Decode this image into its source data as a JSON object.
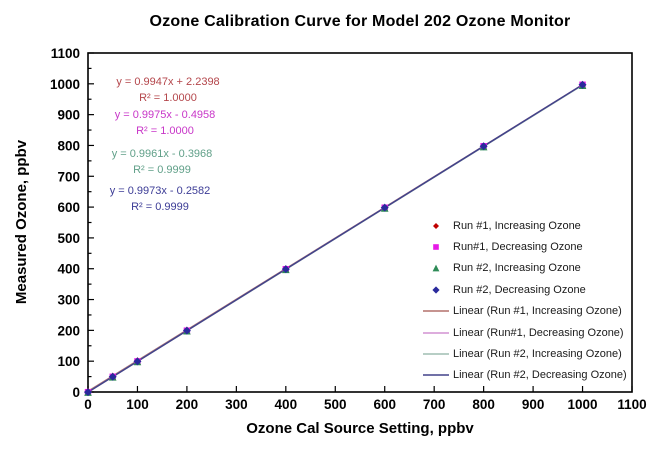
{
  "chart_data": {
    "type": "scatter",
    "title": "Ozone Calibration Curve for Model 202 Ozone Monitor",
    "xlabel": "Ozone Cal Source Setting, ppbv",
    "ylabel": "Measured Ozone, ppbv",
    "xlim": [
      0,
      1100
    ],
    "ylim": [
      0,
      1100
    ],
    "x_tick_step": 100,
    "y_tick_step": 100,
    "y_minor_tick_step": 50,
    "grid": false,
    "legend_position": "inside right",
    "x": [
      0,
      50,
      100,
      200,
      400,
      600,
      800,
      1000
    ],
    "series": [
      {
        "name": "Run #1, Increasing Ozone",
        "marker": "diamond",
        "marker_color": "#C00000",
        "values": [
          2.2,
          52.0,
          101.7,
          201.2,
          400.1,
          599.1,
          798.0,
          996.9
        ],
        "fit": {
          "slope": 0.9947,
          "intercept": 2.2398,
          "equation": "y = 0.9947x + 2.2398",
          "r2": "R² = 1.0000",
          "color": "#B4464B"
        },
        "trend_label": "Linear (Run #1, Increasing Ozone)",
        "trend_color": "#B4716C"
      },
      {
        "name": "Run#1, Decreasing Ozone",
        "marker": "square",
        "marker_color": "#E619E6",
        "values": [
          -0.5,
          49.4,
          99.3,
          199.0,
          398.5,
          598.0,
          797.5,
          997.0
        ],
        "fit": {
          "slope": 0.9975,
          "intercept": -0.4958,
          "equation": "y = 0.9975x - 0.4958",
          "r2": "R² = 1.0000",
          "color": "#C836C8"
        },
        "trend_label": "Linear (Run#1, Decreasing Ozone)",
        "trend_color": "#D292D2"
      },
      {
        "name": "Run #2, Increasing Ozone",
        "marker": "triangle",
        "marker_color": "#2E8B57",
        "values": [
          -0.4,
          49.4,
          99.2,
          198.8,
          398.0,
          597.3,
          796.5,
          995.7
        ],
        "fit": {
          "slope": 0.9961,
          "intercept": -0.3968,
          "equation": "y = 0.9961x - 0.3968",
          "r2": "R² = 0.9999",
          "color": "#61A089"
        },
        "trend_label": "Linear (Run #2, Increasing Ozone)",
        "trend_color": "#9FBDB2"
      },
      {
        "name": "Run #2, Decreasing Ozone",
        "marker": "diamond",
        "marker_color": "#2A2A9C",
        "values": [
          -0.3,
          49.6,
          99.5,
          199.2,
          398.7,
          598.1,
          797.6,
          997.0
        ],
        "fit": {
          "slope": 0.9973,
          "intercept": -0.2582,
          "equation": "y = 0.9973x - 0.2582",
          "r2": "R² = 0.9999",
          "color": "#3C3C96"
        },
        "trend_label": "Linear (Run #2, Decreasing Ozone)",
        "trend_color": "#42428A"
      }
    ]
  }
}
